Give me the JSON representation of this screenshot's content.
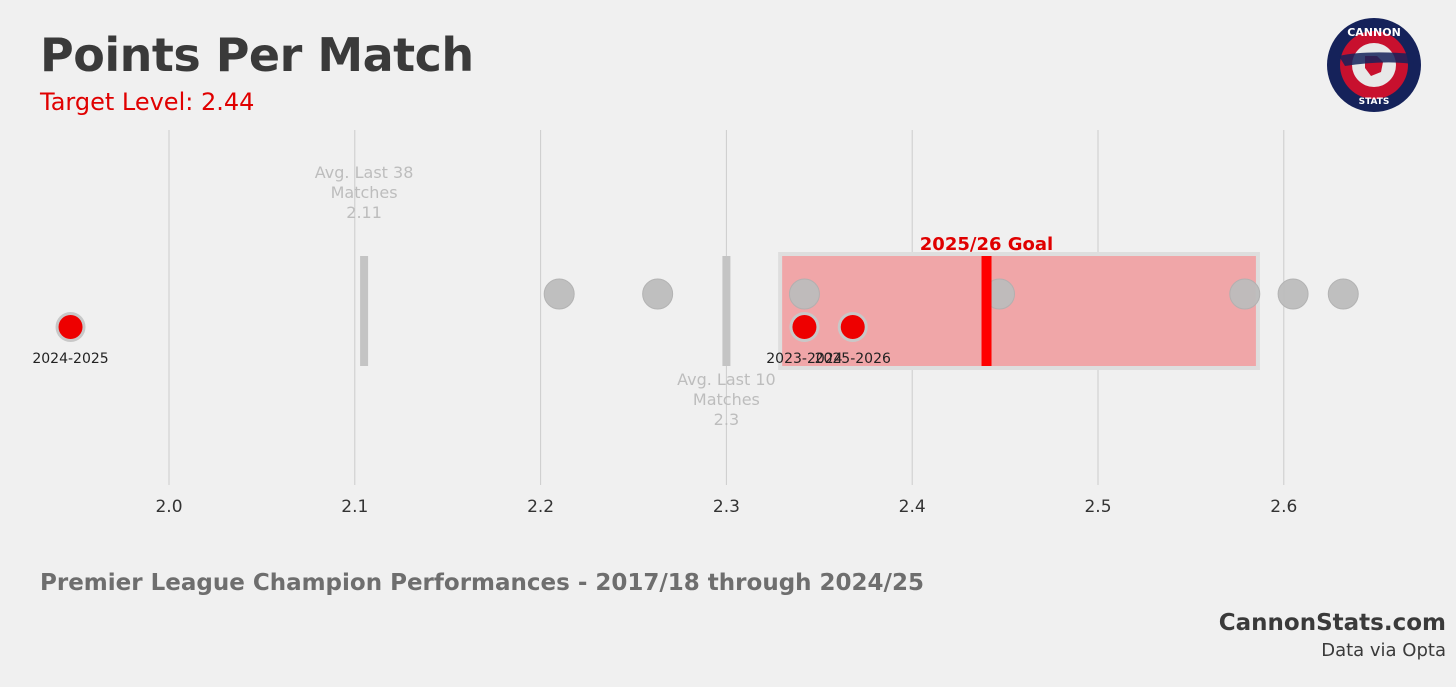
{
  "header": {
    "title": "Points Per Match",
    "subtitle": "Target Level: 2.44"
  },
  "footer": {
    "caption": "Premier League Champion Performances - 2017/18 through 2024/25",
    "site": "CannonStats.com",
    "source": "Data via Opta"
  },
  "logo": {
    "top_text": "CANNON",
    "bottom_text": "STATS"
  },
  "colors": {
    "background": "#f0f0f0",
    "accent_red": "#e00000",
    "marker_red": "#ee0000",
    "grey_point": "#bdbdbd",
    "goal_band": "#f0a6a8",
    "grid": "#cccccc"
  },
  "chart_data": {
    "type": "scatter",
    "xlim": [
      1.94,
      2.65
    ],
    "x_ticks": [
      "2.0",
      "2.1",
      "2.2",
      "2.3",
      "2.4",
      "2.5",
      "2.6"
    ],
    "grid": true,
    "champion_points": [
      2.21,
      2.263,
      2.342,
      2.447,
      2.579,
      2.605,
      2.632
    ],
    "arsenal_points": [
      {
        "label": "2024-2025",
        "value": 1.947
      },
      {
        "label": "2023-2024",
        "value": 2.342
      },
      {
        "label": "2025-2026",
        "value": 2.368
      }
    ],
    "goal_range": [
      2.33,
      2.585
    ],
    "goal": {
      "label": "2025/26 Goal",
      "value": 2.44
    },
    "reference_lines": [
      {
        "label_lines": [
          "Avg. Last 38",
          "Matches",
          "2.11"
        ],
        "value": 2.105
      },
      {
        "label_lines": [
          "Avg. Last 10",
          "Matches",
          "2.3"
        ],
        "value": 2.3
      }
    ]
  }
}
